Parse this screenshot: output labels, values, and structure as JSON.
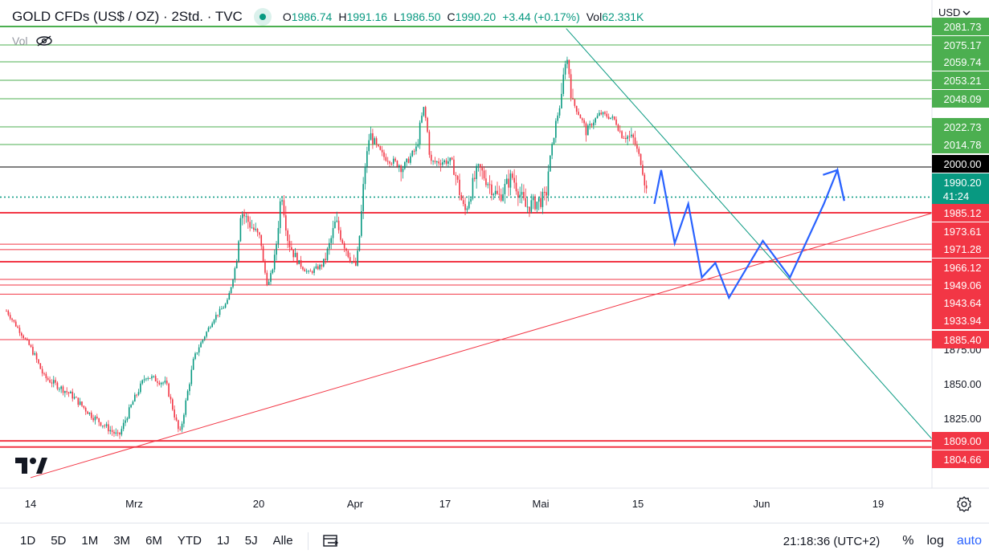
{
  "header": {
    "symbol_title": "GOLD CFDs (US$ / OZ) · 2Std. · TVC",
    "ohlc": [
      {
        "key": "O",
        "value": "1986.74"
      },
      {
        "key": "H",
        "value": "1991.16"
      },
      {
        "key": "L",
        "value": "1986.50"
      },
      {
        "key": "C",
        "value": "1990.20"
      }
    ],
    "change": "+3.44 (+0.17%)",
    "volume_label": "Vol",
    "volume_value": "62.331K",
    "vol_indicator_label": "Vol",
    "currency": "USD"
  },
  "bottom_bar": {
    "ranges": [
      "1D",
      "5D",
      "1M",
      "3M",
      "6M",
      "YTD",
      "1J",
      "5J",
      "Alle"
    ],
    "clock": "21:18:36 (UTC+2)",
    "percent_label": "%",
    "log_label": "log",
    "auto_label": "auto"
  },
  "colors": {
    "up": "#089981",
    "down": "#f23645",
    "support": "#f23645",
    "resistance": "#4caf50",
    "trendline_down": "#089981",
    "forecast": "#2962ff",
    "price_tag": "#089981",
    "black_tag": "#000000"
  },
  "chart_data": {
    "type": "candlestick",
    "title": "GOLD CFDs (US$ / OZ) · 2Std. · TVC",
    "xlabel": "",
    "ylabel": "",
    "ylim": [
      1780,
      2090
    ],
    "x_ticks": [
      "14",
      "Mrz",
      "20",
      "Apr",
      "17",
      "Mai",
      "15",
      "Jun",
      "19"
    ],
    "y_ticks": [
      1825.0,
      1850.0,
      1875.0
    ],
    "last_price": 1990.2,
    "countdown": "41:24",
    "green_levels": [
      "2081.73",
      "2075.17",
      "2059.74",
      "2053.21",
      "2048.09",
      "2022.73",
      "2014.78"
    ],
    "black_level": "2000.00",
    "red_levels": [
      "1985.12",
      "1973.61",
      "1971.28",
      "1966.12",
      "1949.06",
      "1943.64",
      "1933.94",
      "1885.40",
      "1809.00",
      "1804.66"
    ],
    "price_path": [
      {
        "x": "Feb 14",
        "y": 1877
      },
      {
        "x": "Feb 16",
        "y": 1855
      },
      {
        "x": "Feb 20",
        "y": 1842
      },
      {
        "x": "Feb 23",
        "y": 1827
      },
      {
        "x": "Feb 27",
        "y": 1812
      },
      {
        "x": "Mar 1",
        "y": 1836
      },
      {
        "x": "Mar 3",
        "y": 1856
      },
      {
        "x": "Mar 6",
        "y": 1850
      },
      {
        "x": "Mar 8",
        "y": 1813
      },
      {
        "x": "Mar 10",
        "y": 1866
      },
      {
        "x": "Mar 13",
        "y": 1908
      },
      {
        "x": "Mar 15",
        "y": 1925
      },
      {
        "x": "Mar 17",
        "y": 1986
      },
      {
        "x": "Mar 20",
        "y": 1975
      },
      {
        "x": "Mar 21",
        "y": 1942
      },
      {
        "x": "Mar 23",
        "y": 1993
      },
      {
        "x": "Mar 24",
        "y": 1975
      },
      {
        "x": "Mar 27",
        "y": 1955
      },
      {
        "x": "Mar 29",
        "y": 1963
      },
      {
        "x": "Mar 31",
        "y": 1982
      },
      {
        "x": "Apr 3",
        "y": 1962
      },
      {
        "x": "Apr 5",
        "y": 2020
      },
      {
        "x": "Apr 7",
        "y": 2007
      },
      {
        "x": "Apr 10",
        "y": 2000
      },
      {
        "x": "Apr 12",
        "y": 2013
      },
      {
        "x": "Apr 13",
        "y": 2040
      },
      {
        "x": "Apr 14",
        "y": 2003
      },
      {
        "x": "Apr 17",
        "y": 2004
      },
      {
        "x": "Apr 19",
        "y": 1985
      },
      {
        "x": "Apr 21",
        "y": 2000
      },
      {
        "x": "Apr 24",
        "y": 1990
      },
      {
        "x": "Apr 26",
        "y": 1997
      },
      {
        "x": "Apr 28",
        "y": 1987
      },
      {
        "x": "May 1",
        "y": 1990
      },
      {
        "x": "May 3",
        "y": 2040
      },
      {
        "x": "May 4",
        "y": 2064
      },
      {
        "x": "May 5",
        "y": 2045
      },
      {
        "x": "May 7",
        "y": 2020
      },
      {
        "x": "May 9",
        "y": 2035
      },
      {
        "x": "May 11",
        "y": 2030
      },
      {
        "x": "May 12",
        "y": 2020
      },
      {
        "x": "May 14",
        "y": 2017
      },
      {
        "x": "May 16",
        "y": 1990
      }
    ],
    "forecast_path": [
      {
        "x": "May 17",
        "y": 1988
      },
      {
        "x": "May 18",
        "y": 1999
      },
      {
        "x": "May 20",
        "y": 1974
      },
      {
        "x": "May 22",
        "y": 1988
      },
      {
        "x": "May 24",
        "y": 1951
      },
      {
        "x": "May 26",
        "y": 1965
      },
      {
        "x": "May 28",
        "y": 1930
      },
      {
        "x": "Jun 2",
        "y": 1975
      },
      {
        "x": "Jun 6",
        "y": 1951
      },
      {
        "x": "Jun 11",
        "y": 1988
      },
      {
        "x": "Jun 13",
        "y": 1999
      },
      {
        "x": "Jun 14",
        "y": 1989
      }
    ],
    "trendlines": [
      {
        "name": "descending",
        "from": {
          "x": "May 4",
          "y": 2081
        },
        "to": {
          "x": "Jun 27",
          "y": 1810
        }
      },
      {
        "name": "ascending",
        "from": {
          "x": "Feb 14",
          "y": 1783
        },
        "to": {
          "x": "Jun 27",
          "y": 1985
        }
      }
    ]
  }
}
